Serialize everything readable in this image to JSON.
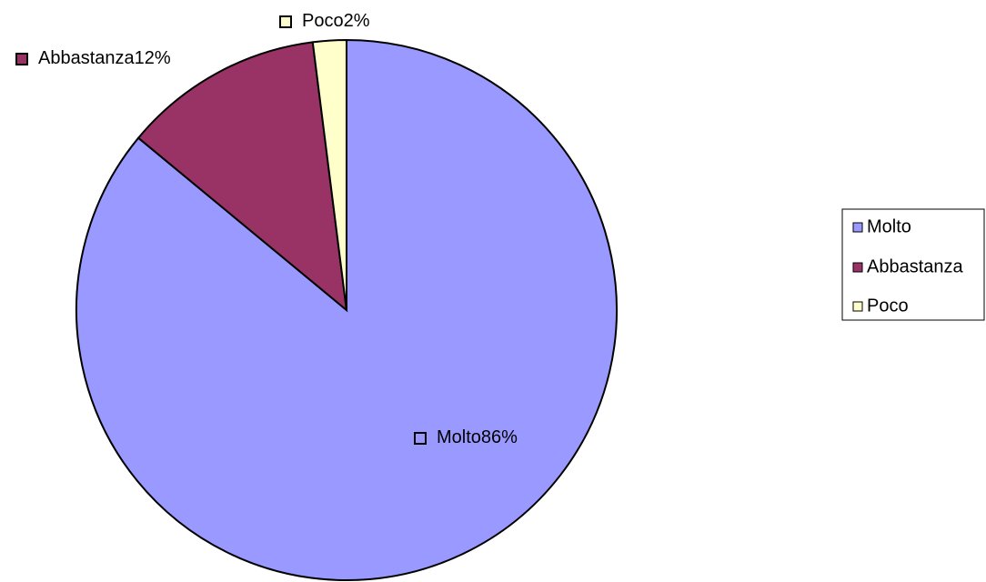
{
  "chart_data": {
    "type": "pie",
    "categories": [
      "Molto",
      "Abbastanza",
      "Poco"
    ],
    "values": [
      86,
      12,
      2
    ],
    "value_labels": [
      "86%",
      "12%",
      "2%"
    ],
    "colors": [
      "#9999ff",
      "#993366",
      "#ffffcc"
    ],
    "legend": "right"
  }
}
